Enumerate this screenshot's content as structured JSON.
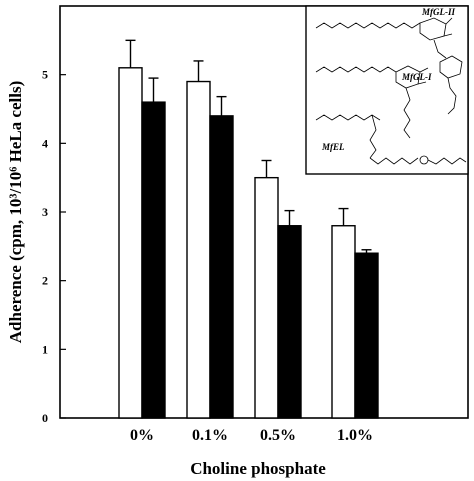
{
  "chart_data": {
    "type": "bar",
    "xlabel": "Choline phosphate",
    "ylabel": "Adherence (cpm, 10³/10⁶ HeLa cells)",
    "categories": [
      "0%",
      "0.1%",
      "0.5%",
      "1.0%"
    ],
    "ylim": [
      0,
      6
    ],
    "yticks": [
      0,
      1,
      2,
      3,
      4,
      5
    ],
    "grid": false,
    "legend": "none",
    "series": [
      {
        "fill": "#ffffff",
        "values": [
          5.1,
          4.9,
          3.5,
          2.8
        ],
        "errors": [
          0.4,
          0.3,
          0.25,
          0.25
        ]
      },
      {
        "fill": "#000000",
        "values": [
          4.6,
          4.4,
          2.8,
          2.4
        ],
        "errors": [
          0.35,
          0.28,
          0.22,
          0.05
        ]
      }
    ],
    "inset": {
      "type": "chemical-structures",
      "labels": [
        "MfGL-II",
        "MfGL-I",
        "MfEL"
      ]
    }
  }
}
